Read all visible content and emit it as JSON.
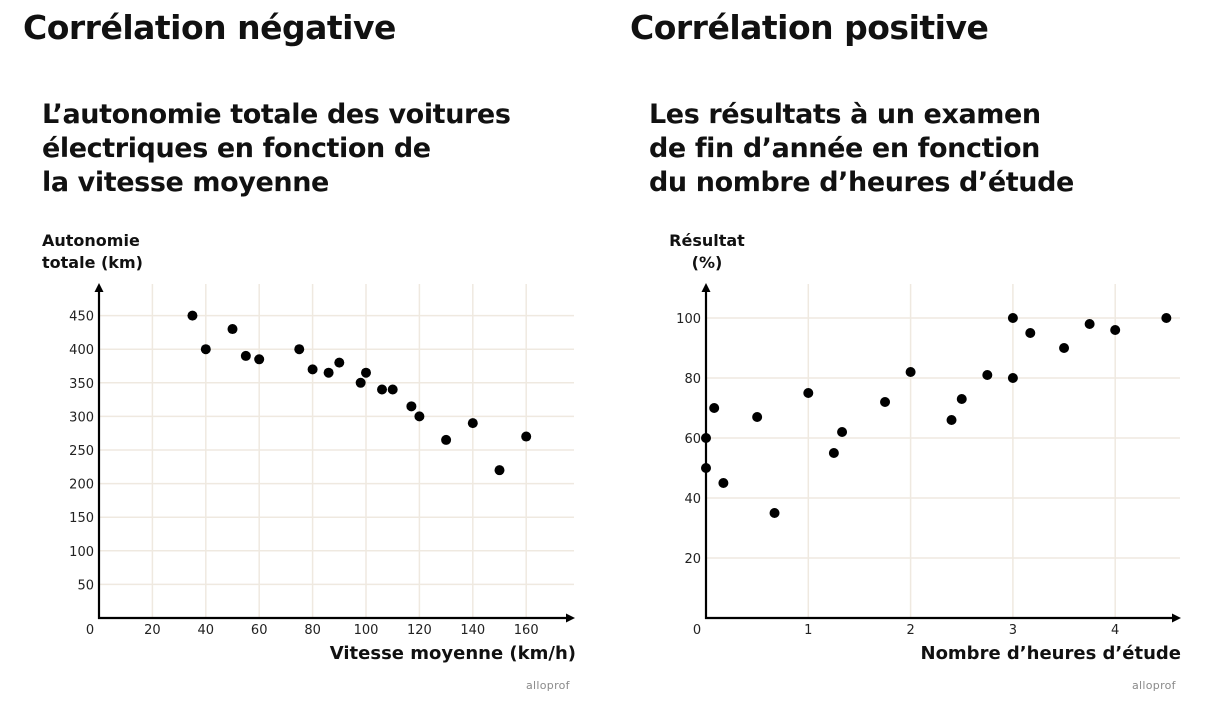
{
  "sections": [
    {
      "heading": "Corrélation négative"
    },
    {
      "heading": "Corrélation positive"
    }
  ],
  "credit": "alloprof",
  "colors": {
    "point": "#000000",
    "grid": "#efe9e0",
    "axis": "#000000"
  },
  "chart_data": [
    {
      "type": "scatter",
      "title": "L’autonomie totale des voitures\nélectriques en fonction de\nla vitesse moyenne",
      "xlabel": "Vitesse moyenne (km/h)",
      "ylabel": "Autonomie\ntotale (km)",
      "xlim": [
        0,
        175
      ],
      "ylim": [
        0,
        490
      ],
      "grid": true,
      "origin_label": "0",
      "xticks": [
        20,
        40,
        60,
        80,
        100,
        120,
        140,
        160
      ],
      "yticks": [
        50,
        100,
        150,
        200,
        250,
        300,
        350,
        400,
        450
      ],
      "points": [
        [
          35,
          450
        ],
        [
          40,
          400
        ],
        [
          50,
          430
        ],
        [
          55,
          390
        ],
        [
          60,
          385
        ],
        [
          75,
          400
        ],
        [
          80,
          370
        ],
        [
          86,
          365
        ],
        [
          90,
          380
        ],
        [
          98,
          350
        ],
        [
          100,
          365
        ],
        [
          106,
          340
        ],
        [
          110,
          340
        ],
        [
          117,
          315
        ],
        [
          120,
          300
        ],
        [
          130,
          265
        ],
        [
          140,
          290
        ],
        [
          150,
          220
        ],
        [
          160,
          270
        ]
      ]
    },
    {
      "type": "scatter",
      "title": "Les résultats à un examen\nde fin d’année en fonction\ndu nombre d’heures d’étude",
      "xlabel": "Nombre d’heures d’étude",
      "ylabel": "Résultat\n(%)",
      "xlim": [
        0,
        4.65
      ],
      "ylim": [
        0,
        110
      ],
      "grid": true,
      "origin_label": "0",
      "xticks": [
        1,
        2,
        3,
        4
      ],
      "yticks": [
        20,
        40,
        60,
        80,
        100
      ],
      "points": [
        [
          0,
          60
        ],
        [
          0,
          50
        ],
        [
          0.08,
          70
        ],
        [
          0.17,
          45
        ],
        [
          0.5,
          67
        ],
        [
          0.67,
          35
        ],
        [
          1,
          75
        ],
        [
          1.25,
          55
        ],
        [
          1.33,
          62
        ],
        [
          1.75,
          72
        ],
        [
          2,
          82
        ],
        [
          2.4,
          66
        ],
        [
          2.5,
          73
        ],
        [
          2.75,
          81
        ],
        [
          3,
          100
        ],
        [
          3,
          80
        ],
        [
          3.17,
          95
        ],
        [
          3.5,
          90
        ],
        [
          3.75,
          98
        ],
        [
          4,
          96
        ],
        [
          4.5,
          100
        ]
      ]
    }
  ]
}
